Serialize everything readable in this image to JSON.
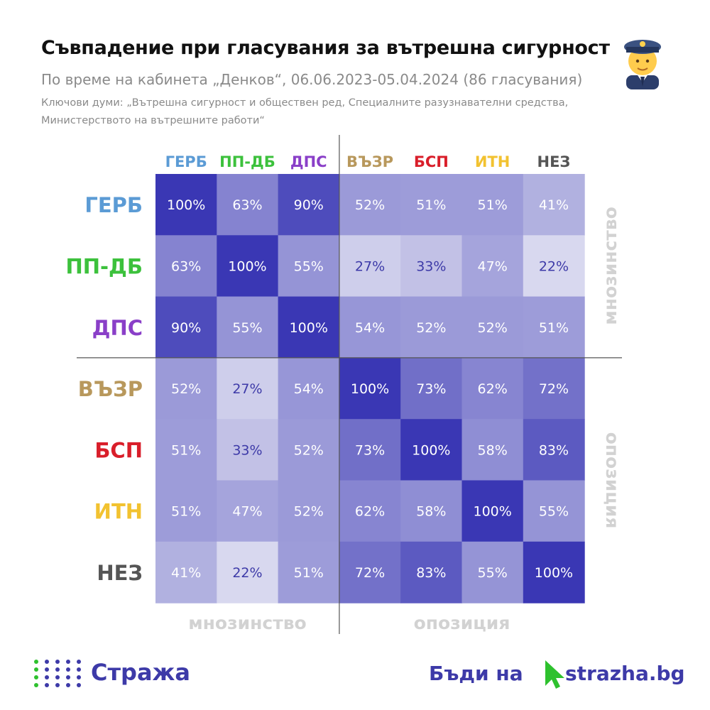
{
  "header": {
    "title": "Съвпадение при гласувания за вътрешна сигурност",
    "subtitle": "По време на кабинета „Денков“, 06.06.2023-05.04.2024 (86 гласувания)",
    "keywords_line1": "Ключови думи: „Вътрешна сигурност и обществен ред, Специалните разузнавателни средства,",
    "keywords_line2": "Министерството на вътрешните работи“"
  },
  "footer": {
    "logo_text": "Стража",
    "cta_text": "Бъди на",
    "site_text": "strazha.bg",
    "cursor_color": "#2ec12e",
    "brand_color": "#3d3aa8"
  },
  "chart_data": {
    "type": "heatmap",
    "parties": [
      {
        "label": "ГЕРБ",
        "color": "#5b9bd5"
      },
      {
        "label": "ПП-ДБ",
        "color": "#3cc13c"
      },
      {
        "label": "ДПС",
        "color": "#8a3fc8"
      },
      {
        "label": "ВЪЗР",
        "color": "#b8985c"
      },
      {
        "label": "БСП",
        "color": "#d91e2a"
      },
      {
        "label": "ИТН",
        "color": "#f2c230"
      },
      {
        "label": "НЕЗ",
        "color": "#555555"
      }
    ],
    "values": [
      [
        100,
        63,
        90,
        52,
        51,
        51,
        41
      ],
      [
        63,
        100,
        55,
        27,
        33,
        47,
        22
      ],
      [
        90,
        55,
        100,
        54,
        52,
        52,
        51
      ],
      [
        52,
        27,
        54,
        100,
        73,
        62,
        72
      ],
      [
        51,
        33,
        52,
        73,
        100,
        58,
        83
      ],
      [
        51,
        47,
        52,
        62,
        58,
        100,
        55
      ],
      [
        41,
        22,
        51,
        72,
        83,
        55,
        100
      ]
    ],
    "value_suffix": "%",
    "group_labels": {
      "majority": "мнозинство",
      "opposition": "опозиция"
    },
    "majority_count": 3,
    "color_low": "#dcdcf0",
    "color_high": "#3a37b4",
    "label_color_light": "#ffffff",
    "label_color_dark": "#3d3aa8"
  }
}
